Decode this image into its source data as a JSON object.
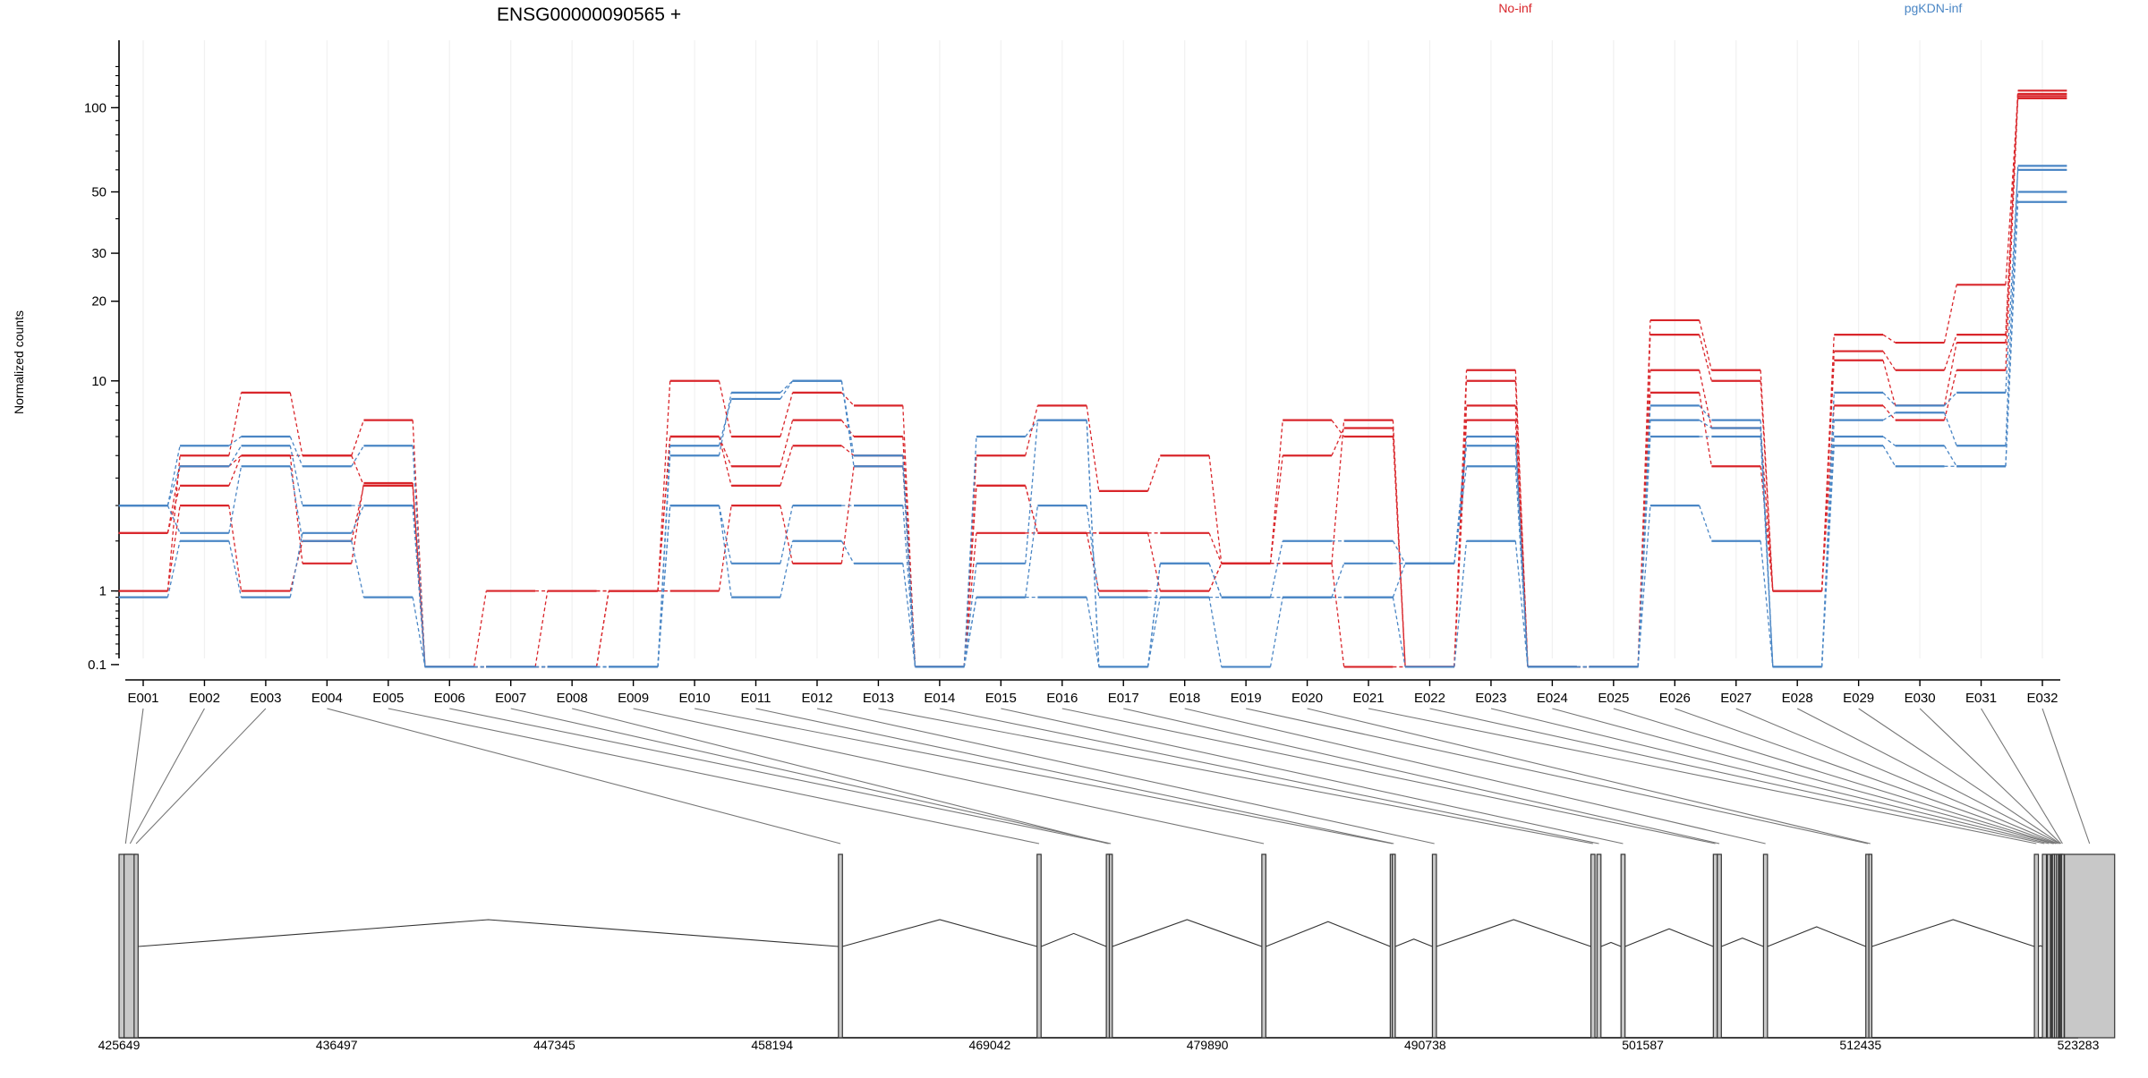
{
  "colors": {
    "no_inf": "#d9262b",
    "pgkdn_inf": "#4a86c5",
    "highlight": "#ee22dd",
    "exon_fill": "#c8c8c8"
  },
  "chart_data": {
    "type": "line",
    "title": "ENSG00000090565 +",
    "ylabel": "Normalized counts",
    "y_scale": "log10 (log(1+count) style)",
    "y_ticks": [
      0.1,
      1,
      10,
      20,
      30,
      50,
      100
    ],
    "y_tick_labels": [
      "0.1",
      "1",
      "10",
      "20",
      "30",
      "50",
      "100"
    ],
    "ylim": [
      0.06,
      150
    ],
    "grid": "vertical at each exon",
    "legend": [
      {
        "name": "No-inf",
        "color": "#d9262b",
        "position": "top-right"
      },
      {
        "name": "pgKDN-inf",
        "color": "#4a86c5",
        "position": "top-right"
      }
    ],
    "categories": [
      "E001",
      "E002",
      "E003",
      "E004",
      "E005",
      "E006",
      "E007",
      "E008",
      "E009",
      "E010",
      "E011",
      "E012",
      "E013",
      "E014",
      "E015",
      "E016",
      "E017",
      "E018",
      "E019",
      "E020",
      "E021",
      "E022",
      "E023",
      "E024",
      "E025",
      "E026",
      "E027",
      "E028",
      "E029",
      "E030",
      "E031",
      "E032"
    ],
    "highlight_category": "E032",
    "series": [
      {
        "group": "No-inf",
        "values": [
          1,
          5,
          9,
          5,
          7,
          0.08,
          1,
          1,
          1,
          10,
          6,
          9,
          8,
          0.08,
          5,
          8,
          3.5,
          5,
          1.5,
          7,
          6,
          0.08,
          11,
          0.08,
          0.08,
          17,
          11,
          1,
          15,
          14,
          23,
          110
        ]
      },
      {
        "group": "No-inf",
        "values": [
          2.2,
          4.5,
          5,
          5,
          3.7,
          0.08,
          0.08,
          1,
          1,
          6,
          4.5,
          7,
          6,
          0.08,
          3.7,
          2.2,
          2.2,
          2.2,
          1.5,
          5,
          6.5,
          0.08,
          10,
          0.08,
          0.08,
          15,
          10,
          1,
          13,
          11,
          15,
          115
        ]
      },
      {
        "group": "No-inf",
        "values": [
          2.2,
          3.7,
          5,
          1.5,
          3.8,
          0.08,
          0.08,
          0.08,
          1,
          6,
          3.7,
          5.5,
          5,
          0.08,
          3.7,
          2.2,
          2.2,
          1,
          1.5,
          1.5,
          7,
          0.08,
          7,
          0.08,
          0.08,
          11,
          6.5,
          1,
          12,
          8,
          14,
          112
        ]
      },
      {
        "group": "No-inf",
        "values": [
          1,
          3,
          1,
          2,
          3.7,
          0.08,
          0.08,
          0.08,
          1,
          1,
          3,
          1.5,
          4.5,
          0.08,
          2.2,
          2.2,
          1,
          1,
          1.5,
          1.5,
          0.08,
          0.08,
          8,
          0.08,
          0.08,
          9,
          4.5,
          1,
          8,
          7,
          11,
          108
        ]
      },
      {
        "group": "pgKDN-inf",
        "values": [
          3,
          5.5,
          6,
          4.5,
          5.5,
          0.08,
          0.08,
          0.08,
          0.08,
          5,
          9,
          10,
          5,
          0.08,
          6,
          7,
          0.08,
          1.5,
          0.9,
          2,
          2,
          1.5,
          6,
          0.08,
          0.08,
          8,
          7,
          0.08,
          9,
          8,
          9,
          60
        ]
      },
      {
        "group": "pgKDN-inf",
        "values": [
          3,
          4.5,
          5.5,
          3,
          3,
          0.08,
          0.08,
          0.08,
          0.08,
          5.5,
          8.5,
          10,
          4.5,
          0.08,
          1.5,
          7,
          0.08,
          1.5,
          0.9,
          0.9,
          1.5,
          1.5,
          5.5,
          0.08,
          0.08,
          7,
          6.5,
          0.08,
          7,
          7.5,
          5.5,
          62
        ]
      },
      {
        "group": "pgKDN-inf",
        "values": [
          3,
          2.2,
          4.5,
          2,
          0.9,
          0.08,
          0.08,
          0.08,
          0.08,
          3,
          1.5,
          3,
          3,
          0.08,
          0.9,
          3,
          0.9,
          0.9,
          0.9,
          0.9,
          0.9,
          1.5,
          4.5,
          0.08,
          0.08,
          6,
          6,
          0.08,
          6,
          5.5,
          4.5,
          50
        ]
      },
      {
        "group": "pgKDN-inf",
        "values": [
          0.9,
          2,
          0.9,
          2.2,
          3,
          0.08,
          0.08,
          0.08,
          0.08,
          3,
          0.9,
          2,
          1.5,
          0.08,
          0.9,
          0.9,
          0.08,
          0.9,
          0.08,
          0.9,
          0.9,
          0.08,
          2,
          0.08,
          0.08,
          3,
          2,
          0.08,
          5.5,
          4.5,
          4.5,
          46
        ]
      }
    ],
    "genomic_axis": {
      "ticks": [
        425649,
        436497,
        447345,
        458194,
        469042,
        479890,
        490738,
        501587,
        512435,
        523283
      ],
      "tick_labels": [
        "425649",
        "436497",
        "447345",
        "458194",
        "469042",
        "479890",
        "490738",
        "501587",
        "512435",
        "523283"
      ],
      "range": [
        425649,
        523283
      ]
    },
    "exon_starts": [
      425649,
      425900,
      426400,
      461500,
      471400,
      474900,
      475000,
      474850,
      482600,
      489000,
      489100,
      491100,
      499000,
      499300,
      500500,
      505100,
      505300,
      507600,
      512700,
      512850,
      521100,
      521500,
      521750,
      521950,
      522000,
      522100,
      522200,
      522300,
      522350,
      522400,
      522450,
      522600
    ],
    "exon_ends": [
      426300,
      426500,
      426600,
      461700,
      471600,
      475100,
      475150,
      475000,
      482800,
      489200,
      489250,
      491300,
      499200,
      499500,
      500700,
      505300,
      505500,
      507800,
      512900,
      513000,
      521300,
      521700,
      521900,
      522100,
      522150,
      522250,
      522300,
      522400,
      522400,
      522450,
      522550,
      525100
    ]
  }
}
